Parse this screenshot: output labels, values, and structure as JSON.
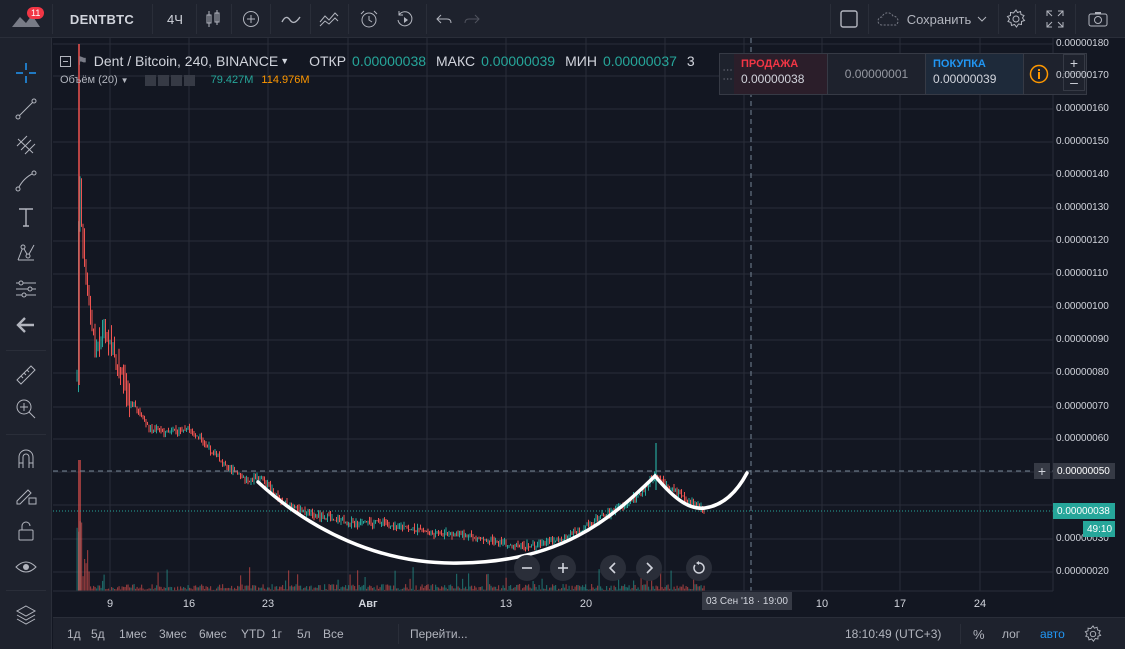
{
  "header": {
    "notification_count": "11",
    "symbol": "DENTBTC",
    "interval": "4Ч",
    "save_label": "Сохранить"
  },
  "legend": {
    "title": "Dent / Bitcoin, 240, BINANCE",
    "open_label": "ОТКР",
    "open_value": "0.00000038",
    "high_label": "МАКС",
    "high_value": "0.00000039",
    "low_label": "МИН",
    "low_value": "0.00000037",
    "close_trunc": "3",
    "volume_label": "Объём (20)",
    "volume_value_1": "79.427M",
    "volume_value_2": "114.976M"
  },
  "trade_panel": {
    "sell_label": "ПРОДАЖА",
    "sell_value": "0.00000038",
    "spread_value": "0.00000001",
    "buy_label": "ПОКУПКА",
    "buy_value": "0.00000039"
  },
  "price_axis": {
    "ticks": [
      "0.00000180",
      "0.00000170",
      "0.00000160",
      "0.00000150",
      "0.00000140",
      "0.00000130",
      "0.00000120",
      "0.00000110",
      "0.00000100",
      "0.00000090",
      "0.00000080",
      "0.00000070",
      "0.00000060",
      "0.00000050",
      "0.00000038",
      "0.00000030",
      "0.00000020"
    ],
    "crosshair_price": "0.00000050",
    "last_price": "0.00000038",
    "countdown": "49:10"
  },
  "time_axis": {
    "ticks": [
      "9",
      "16",
      "23",
      "Авг",
      "13",
      "20",
      "10",
      "17",
      "24"
    ],
    "crosshair_time": "03 Сен '18 · 19:00"
  },
  "bottom_bar": {
    "ranges": [
      "1д",
      "5д",
      "1мес",
      "3мес",
      "6мес",
      "YTD",
      "1г",
      "5л",
      "Все"
    ],
    "goto_label": "Перейти...",
    "clock": "18:10:49 (UTC+3)",
    "percent_label": "%",
    "log_label": "лог",
    "auto_label": "авто"
  },
  "colors": {
    "up": "#26a69a",
    "down": "#ef5350",
    "accent": "#2196f3",
    "sell": "#f23645",
    "buy": "#2196f3"
  },
  "chart_data": {
    "type": "candlestick",
    "x": [
      "2018-07-06",
      "2018-07-09",
      "2018-07-16",
      "2018-07-23",
      "2018-07-30",
      "2018-08-06",
      "2018-08-13",
      "2018-08-20",
      "2018-08-25",
      "2018-08-27"
    ],
    "close": [
      1.2e-06,
      8.5e-07,
      6.2e-07,
      4.7e-07,
      3.8e-07,
      3.4e-07,
      3.1e-07,
      3.7e-07,
      5e-07,
      3.8e-07
    ],
    "annotation": "cup-and-handle curve"
  }
}
